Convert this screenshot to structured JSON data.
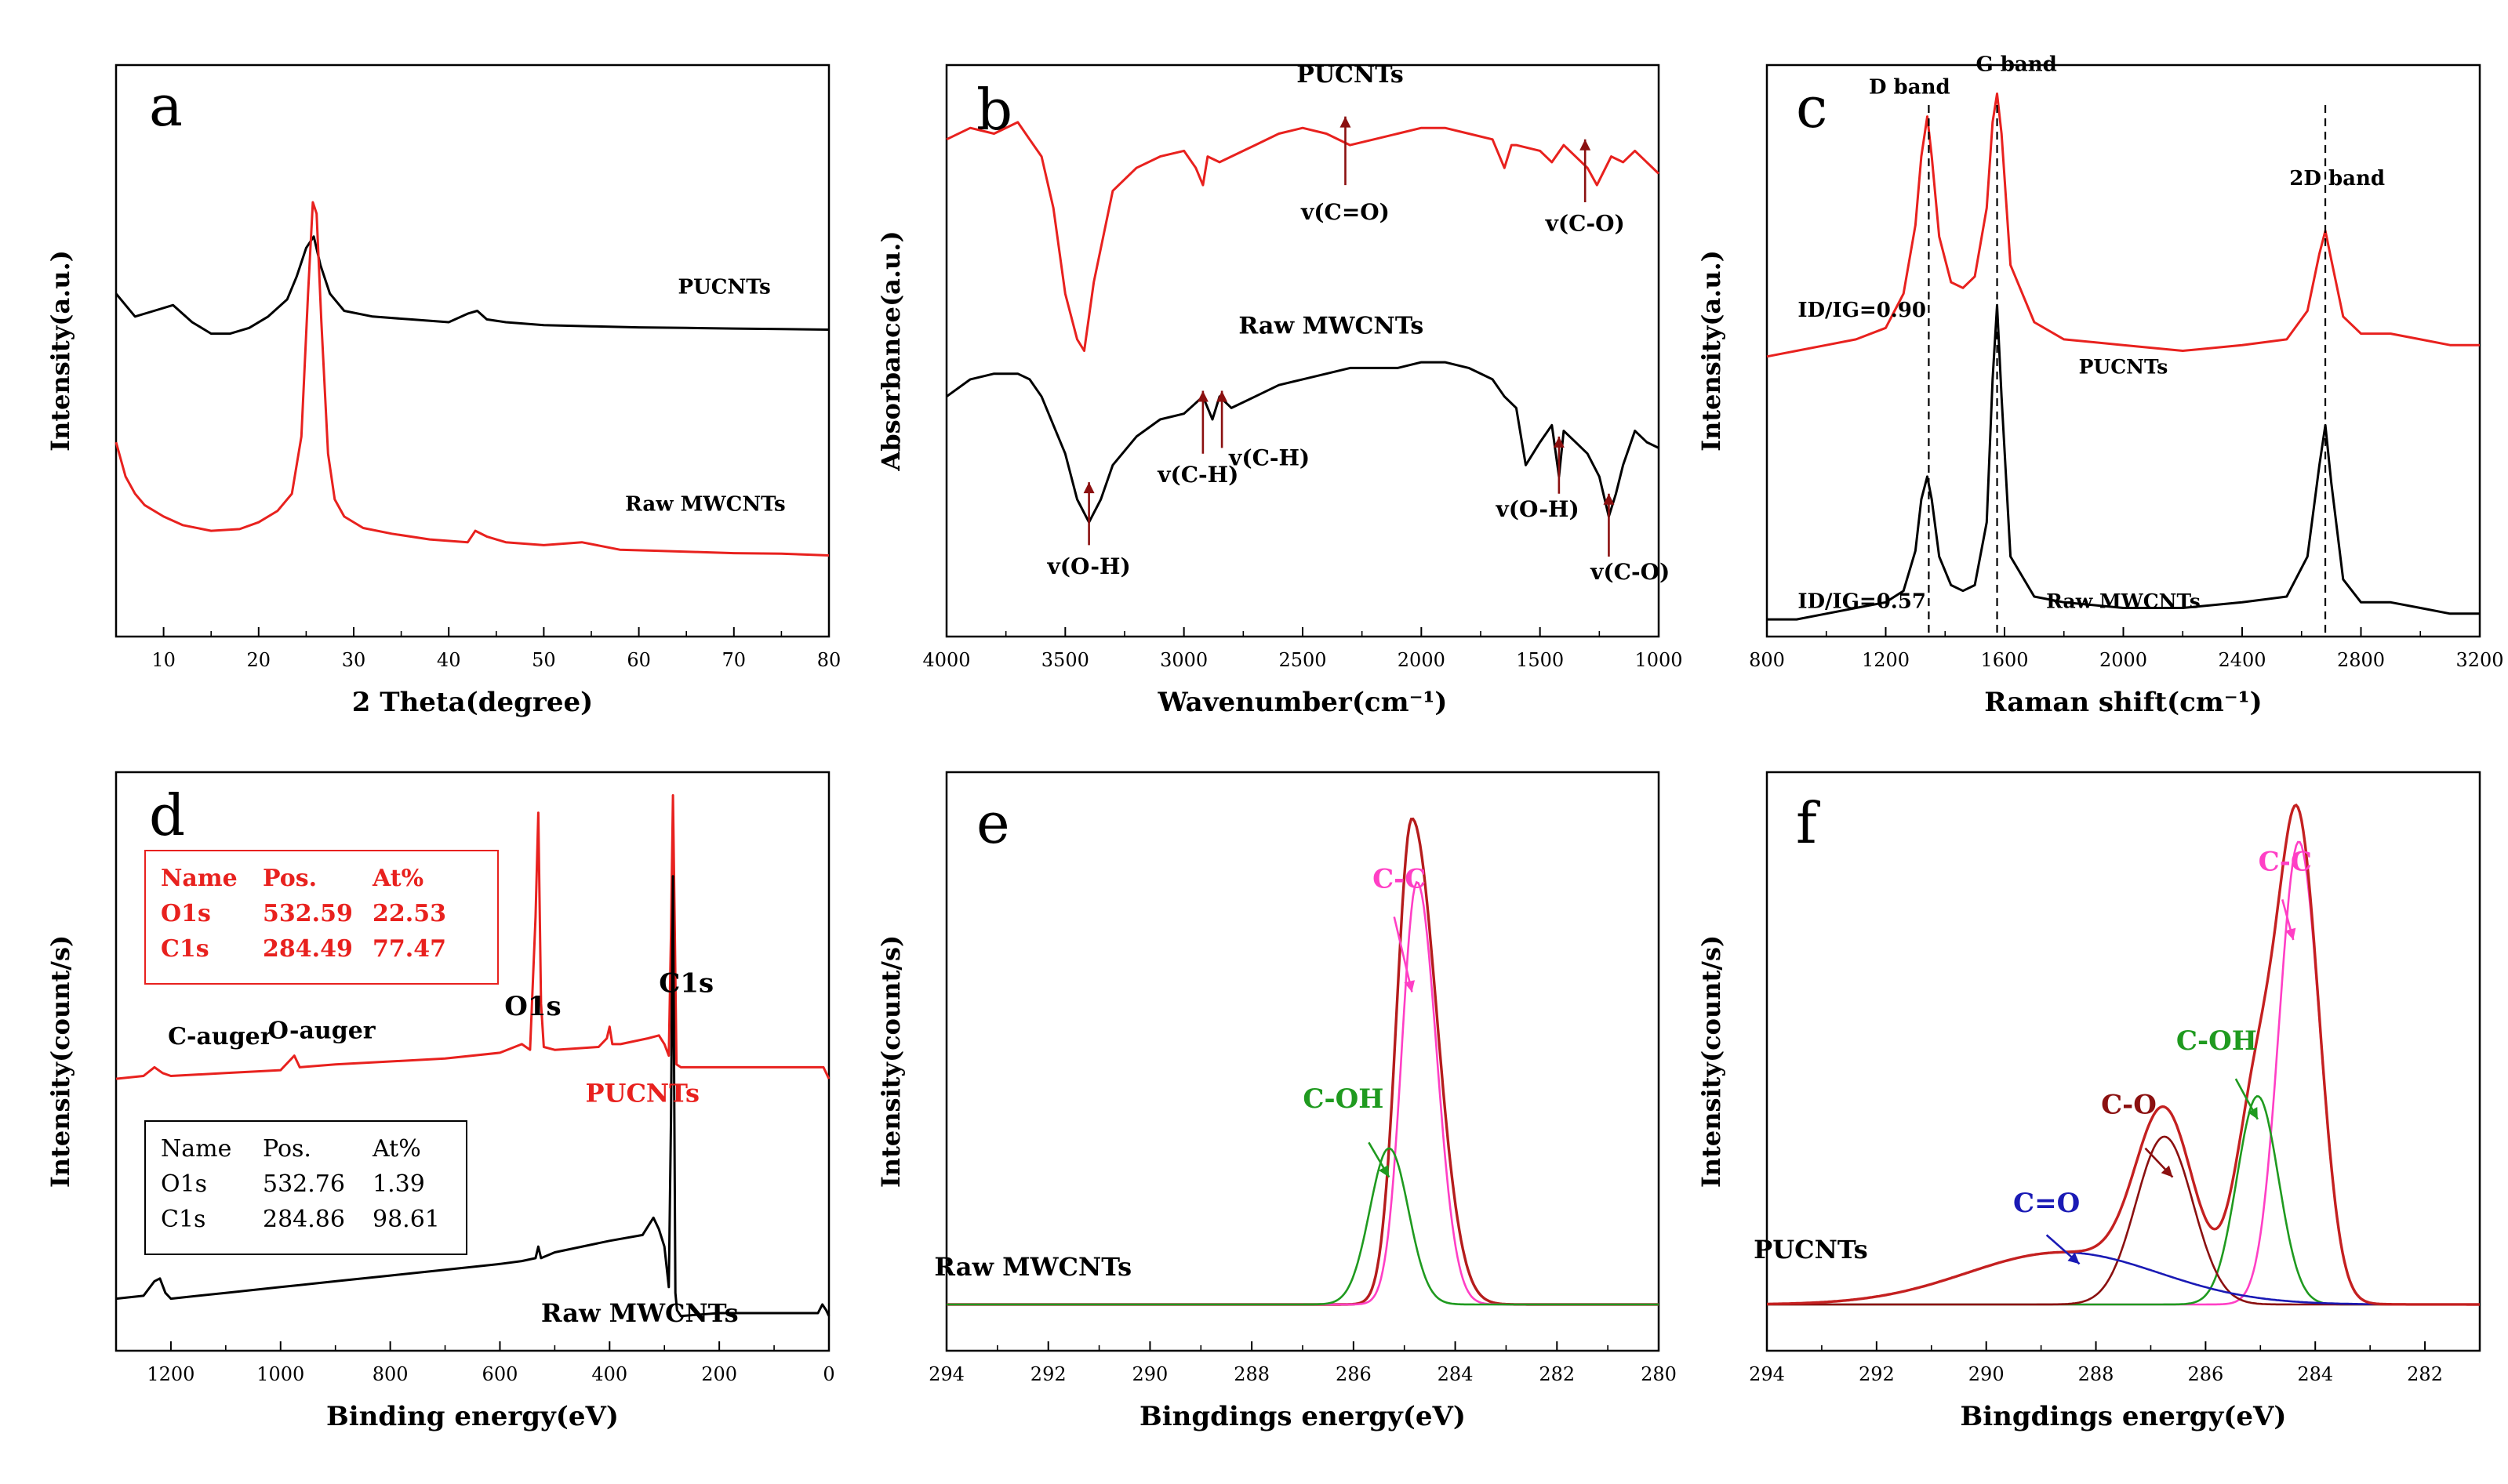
{
  "chart_data": [
    {
      "type": "line",
      "panel_label": "a",
      "xlabel": "2 Theta(degree)",
      "ylabel": "Intensity(a.u.)",
      "xlim": [
        5,
        80
      ],
      "ylim": [
        0,
        100
      ],
      "xticks": [
        10,
        20,
        30,
        40,
        50,
        60,
        70,
        80
      ],
      "yticks_shown": false,
      "series": [
        {
          "name": "PUCNTs",
          "color": "#000000",
          "x": [
            5,
            7,
            9,
            11,
            13,
            15,
            17,
            19,
            21,
            23,
            24,
            25,
            25.8,
            26.5,
            27.5,
            29,
            32,
            36,
            40,
            42,
            43,
            44,
            46,
            50,
            55,
            60,
            65,
            70,
            75,
            80
          ],
          "y": [
            60,
            56,
            57,
            58,
            55,
            53,
            53,
            54,
            56,
            59,
            63,
            68,
            70,
            65,
            60,
            57,
            56,
            55.5,
            55,
            56.5,
            57,
            55.5,
            55,
            54.5,
            54.3,
            54.1,
            54,
            53.9,
            53.8,
            53.7
          ]
        },
        {
          "name": "Raw MWCNTs",
          "color": "#e8211e",
          "x": [
            5,
            6,
            7,
            8,
            10,
            12,
            15,
            18,
            20,
            22,
            23.5,
            24.5,
            25.2,
            25.7,
            26.1,
            26.6,
            27.3,
            28,
            29,
            31,
            34,
            38,
            42,
            42.8,
            44,
            46,
            50,
            54,
            58,
            62,
            66,
            70,
            75,
            80
          ],
          "y": [
            34,
            28,
            25,
            23,
            21,
            19.5,
            18.5,
            18.8,
            20,
            22,
            25,
            35,
            60,
            76,
            74,
            55,
            32,
            24,
            21,
            19,
            18,
            17,
            16.5,
            18.5,
            17.5,
            16.5,
            16,
            16.5,
            15.2,
            15,
            14.8,
            14.6,
            14.5,
            14.2
          ]
        }
      ],
      "annotations": [
        "PUCNTs",
        "Raw MWCNTs"
      ]
    },
    {
      "type": "line",
      "panel_label": "b",
      "xlabel": "Wavenumber(cm⁻¹)",
      "ylabel": "Absorbance(a.u.)",
      "xlim": [
        4000,
        1000
      ],
      "ylim": [
        0,
        100
      ],
      "xticks": [
        4000,
        3500,
        3000,
        2500,
        2000,
        1500,
        1000
      ],
      "yticks_shown": false,
      "series": [
        {
          "name": "PUCNTs",
          "color": "#e8211e",
          "x": [
            4000,
            3900,
            3800,
            3700,
            3650,
            3600,
            3550,
            3500,
            3450,
            3420,
            3380,
            3300,
            3200,
            3100,
            3000,
            2950,
            2920,
            2900,
            2850,
            2800,
            2700,
            2600,
            2500,
            2400,
            2300,
            2200,
            2100,
            2000,
            1900,
            1800,
            1700,
            1650,
            1620,
            1600,
            1500,
            1450,
            1400,
            1300,
            1260,
            1200,
            1150,
            1100,
            1000
          ],
          "y": [
            87,
            89,
            88,
            90,
            87,
            84,
            75,
            60,
            52,
            50,
            62,
            78,
            82,
            84,
            85,
            82,
            79,
            84,
            83,
            84,
            86,
            88,
            89,
            88,
            86,
            87,
            88,
            89,
            89,
            88,
            87,
            82,
            86,
            86,
            85,
            83,
            86,
            82,
            79,
            84,
            83,
            85,
            81
          ]
        },
        {
          "name": "Raw MWCNTs",
          "color": "#000000",
          "x": [
            4000,
            3900,
            3800,
            3700,
            3650,
            3600,
            3550,
            3500,
            3450,
            3400,
            3350,
            3300,
            3200,
            3100,
            3000,
            2920,
            2880,
            2850,
            2800,
            2700,
            2600,
            2500,
            2400,
            2300,
            2200,
            2100,
            2000,
            1900,
            1800,
            1700,
            1650,
            1600,
            1560,
            1500,
            1450,
            1420,
            1400,
            1350,
            1300,
            1250,
            1210,
            1180,
            1150,
            1100,
            1050,
            1000
          ],
          "y": [
            42,
            45,
            46,
            46,
            45,
            42,
            37,
            32,
            24,
            20,
            24,
            30,
            35,
            38,
            39,
            42,
            38,
            42,
            40,
            42,
            44,
            45,
            46,
            47,
            47,
            47,
            48,
            48,
            47,
            45,
            42,
            40,
            30,
            34,
            37,
            28,
            36,
            34,
            32,
            28,
            21,
            25,
            30,
            36,
            34,
            33
          ]
        }
      ],
      "annotations": [
        "PUCNTs",
        "Raw MWCNTs",
        "v(C=O)",
        "v(C-O)",
        "v(O-H)",
        "v(C-H)",
        "v(C-H)",
        "v(O-H)",
        "v(C-O)"
      ]
    },
    {
      "type": "line",
      "panel_label": "c",
      "xlabel": "Raman shift(cm⁻¹)",
      "ylabel": "Intensity(a.u.)",
      "xlim": [
        800,
        3200
      ],
      "ylim": [
        0,
        100
      ],
      "xticks": [
        800,
        1200,
        1600,
        2000,
        2400,
        2800,
        3200
      ],
      "yticks_shown": false,
      "series": [
        {
          "name": "PUCNTs",
          "color": "#e8211e",
          "x": [
            800,
            900,
            1000,
            1100,
            1200,
            1260,
            1300,
            1320,
            1340,
            1355,
            1380,
            1420,
            1460,
            1500,
            1540,
            1560,
            1575,
            1590,
            1620,
            1700,
            1800,
            2000,
            2200,
            2400,
            2550,
            2620,
            2660,
            2680,
            2700,
            2740,
            2800,
            2900,
            3000,
            3100,
            3200
          ],
          "y": [
            49,
            50,
            51,
            52,
            54,
            60,
            72,
            84,
            91,
            84,
            70,
            62,
            61,
            63,
            75,
            90,
            95,
            88,
            65,
            55,
            52,
            51,
            50,
            51,
            52,
            57,
            67,
            71,
            66,
            56,
            53,
            53,
            52,
            51,
            51
          ]
        },
        {
          "name": "Raw MWCNTs",
          "color": "#000000",
          "x": [
            800,
            900,
            1000,
            1100,
            1200,
            1260,
            1300,
            1320,
            1340,
            1355,
            1380,
            1420,
            1460,
            1500,
            1540,
            1560,
            1575,
            1590,
            1620,
            1700,
            1800,
            2000,
            2200,
            2400,
            2550,
            2620,
            2660,
            2680,
            2700,
            2740,
            2800,
            2900,
            3000,
            3100,
            3200
          ],
          "y": [
            3,
            3,
            4,
            5,
            6,
            8,
            15,
            24,
            28,
            24,
            14,
            9,
            8,
            9,
            20,
            45,
            58,
            42,
            14,
            7,
            6,
            5,
            5,
            6,
            7,
            14,
            30,
            37,
            27,
            10,
            6,
            6,
            5,
            4,
            4
          ]
        }
      ],
      "markers": {
        "D band": 1345,
        "G band": 1575,
        "2D band": 2680
      },
      "annotations": [
        "D band",
        "G band",
        "2D band",
        "ID/IG=0.90",
        "ID/IG=0.57",
        "PUCNTs",
        "Raw MWCNTs"
      ]
    },
    {
      "type": "line",
      "panel_label": "d",
      "xlabel": "Binding energy(eV)",
      "ylabel": "Intensity(count/s)",
      "xlim": [
        1300,
        0
      ],
      "ylim": [
        0,
        100
      ],
      "xticks": [
        1200,
        1000,
        800,
        600,
        400,
        200,
        0
      ],
      "yticks_shown": false,
      "series": [
        {
          "name": "PUCNTs",
          "color": "#e8211e",
          "x": [
            1300,
            1250,
            1230,
            1215,
            1200,
            1100,
            1000,
            985,
            975,
            965,
            900,
            800,
            700,
            600,
            560,
            545,
            535,
            530,
            525,
            520,
            500,
            420,
            405,
            400,
            395,
            380,
            330,
            310,
            300,
            292,
            288,
            284.5,
            281,
            278,
            270,
            200,
            100,
            20,
            10,
            0
          ],
          "y": [
            47,
            47.5,
            49,
            48,
            47.5,
            48,
            48.5,
            50,
            51,
            49,
            49.5,
            50,
            50.5,
            51.5,
            53,
            52,
            75,
            93,
            60,
            52.5,
            52,
            52.5,
            54,
            56,
            53,
            53,
            54,
            54.5,
            53,
            51,
            72,
            96,
            72,
            49.5,
            49,
            49,
            49,
            49,
            49,
            47
          ]
        },
        {
          "name": "Raw MWCNTs",
          "color": "#000000",
          "x": [
            1300,
            1250,
            1230,
            1220,
            1210,
            1200,
            1100,
            1000,
            900,
            800,
            700,
            600,
            560,
            535,
            530,
            525,
            500,
            400,
            340,
            320,
            310,
            300,
            292,
            288,
            284.5,
            280,
            277,
            270,
            200,
            100,
            20,
            12,
            5,
            0
          ],
          "y": [
            9,
            9.5,
            12,
            12.5,
            10,
            9,
            10,
            11,
            12,
            13,
            14,
            15,
            15.5,
            16,
            18,
            16,
            17,
            19,
            20,
            23,
            21,
            18,
            11,
            40,
            82,
            10,
            7,
            6,
            6.5,
            6.5,
            6.5,
            8,
            7,
            6
          ]
        }
      ],
      "tables": [
        {
          "header": [
            "Name",
            "Pos.",
            "At%"
          ],
          "rows": [
            [
              "O1s",
              "532.59",
              "22.53"
            ],
            [
              "C1s",
              "284.49",
              "77.47"
            ]
          ],
          "color": "#e8211e"
        },
        {
          "header": [
            "Name",
            "Pos.",
            "At%"
          ],
          "rows": [
            [
              "O1s",
              "532.76",
              "1.39"
            ],
            [
              "C1s",
              "284.86",
              "98.61"
            ]
          ],
          "color": "#000000"
        }
      ],
      "annotations": [
        "O1s",
        "C1s",
        "C-auger",
        "O-auger",
        "PUCNTs",
        "Raw MWCNTs"
      ]
    },
    {
      "type": "line",
      "panel_label": "e",
      "xlabel": "Bingdings energy(eV)",
      "ylabel": "Intensity(count/s)",
      "xlim": [
        294,
        280
      ],
      "ylim": [
        0,
        100
      ],
      "xticks": [
        294,
        292,
        290,
        288,
        286,
        284,
        282,
        280
      ],
      "yticks_shown": false,
      "peaks": [
        {
          "name": "envelope",
          "color": "#b51c1c",
          "center": 284.85,
          "height": 84,
          "width_left": 0.48,
          "width_right": 0.3,
          "baseline": 8
        },
        {
          "name": "C-C",
          "color": "#ff3fc5",
          "center": 284.75,
          "height": 73,
          "width_left": 0.38,
          "width_right": 0.3,
          "baseline": 8
        },
        {
          "name": "C-OH",
          "color": "#1f9a1f",
          "center": 285.3,
          "height": 27,
          "width_left": 0.38,
          "width_right": 0.38,
          "baseline": 8
        }
      ],
      "annotations": [
        "C-C",
        "C-OH",
        "Raw MWCNTs"
      ]
    },
    {
      "type": "line",
      "panel_label": "f",
      "xlabel": "Bingdings energy(eV)",
      "ylabel": "Intensity(count/s)",
      "xlim": [
        294,
        281
      ],
      "ylim": [
        0,
        100
      ],
      "xticks": [
        294,
        292,
        290,
        288,
        286,
        284,
        282
      ],
      "yticks_shown": false,
      "peaks": [
        {
          "name": "C-C",
          "color": "#ff3fc5",
          "center": 284.3,
          "height": 80,
          "width_left": 0.38,
          "width_right": 0.36,
          "baseline": 8
        },
        {
          "name": "C-OH",
          "color": "#1f9a1f",
          "center": 285.05,
          "height": 36,
          "width_left": 0.38,
          "width_right": 0.38,
          "baseline": 8
        },
        {
          "name": "C-O",
          "color": "#8b1010",
          "center": 286.75,
          "height": 29,
          "width_left": 0.52,
          "width_right": 0.52,
          "baseline": 8
        },
        {
          "name": "C=O",
          "color": "#1a1ab5",
          "center": 288.6,
          "height": 9,
          "width_left": 1.75,
          "width_right": 1.75,
          "baseline": 8
        }
      ],
      "envelope_color": "#c42020",
      "annotations": [
        "C-C",
        "C-OH",
        "C-O",
        "C=O",
        "PUCNTs"
      ]
    }
  ]
}
